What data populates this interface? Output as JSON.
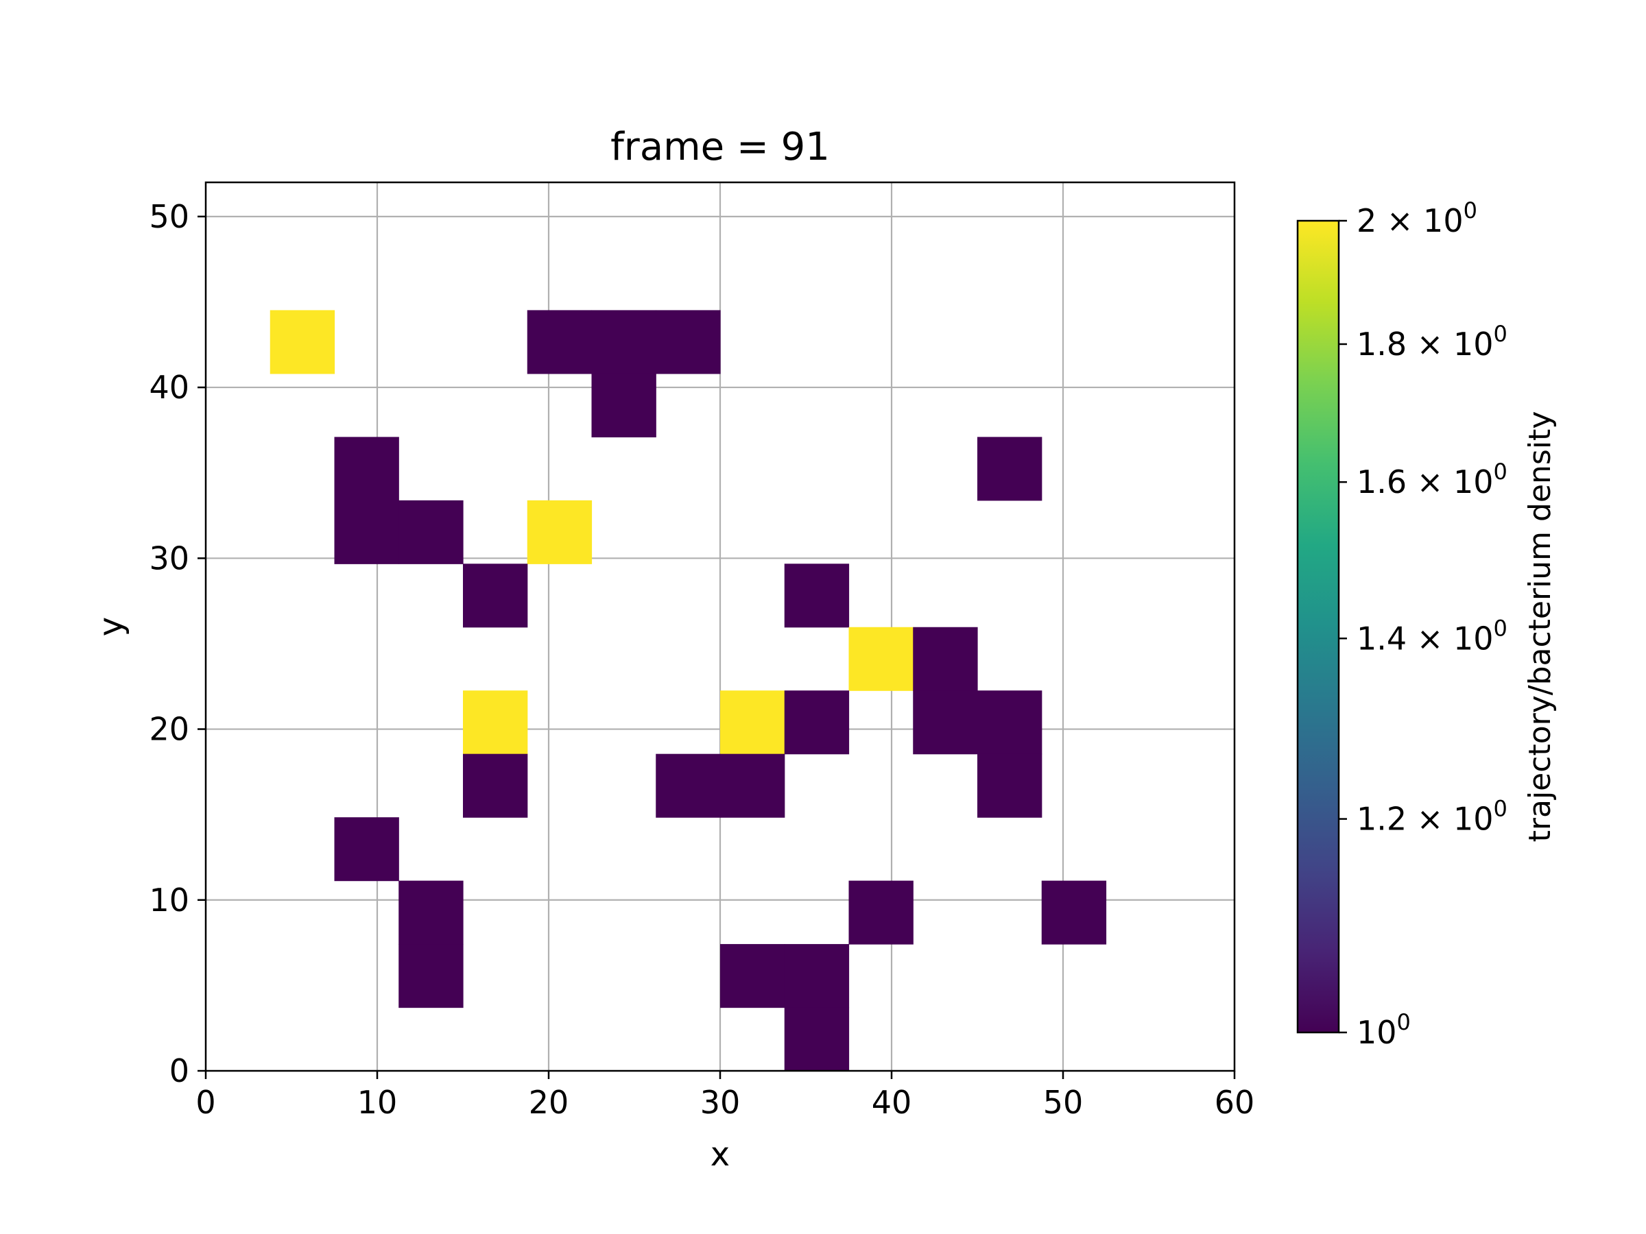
{
  "chart_data": {
    "type": "heatmap",
    "title": "frame = 91",
    "xlabel": "x",
    "ylabel": "y",
    "xlim": [
      0,
      60
    ],
    "ylim": [
      0,
      52
    ],
    "grid": true,
    "bin_width": 3.75,
    "bin_height": 3.71,
    "x_ticks": [
      "0",
      "10",
      "20",
      "30",
      "40",
      "50",
      "60"
    ],
    "y_ticks": [
      "0",
      "10",
      "20",
      "30",
      "40",
      "50"
    ],
    "colorbar": {
      "label": "trajectory/bacterium density",
      "scale": "log",
      "colormap": "viridis",
      "min": 1,
      "max": 2,
      "ticks": [
        {
          "value": 2.0,
          "mantissa": "2",
          "base": "10",
          "exp": "0"
        },
        {
          "value": 1.8,
          "mantissa": "1.8",
          "base": "10",
          "exp": "0"
        },
        {
          "value": 1.6,
          "mantissa": "1.6",
          "base": "10",
          "exp": "0"
        },
        {
          "value": 1.4,
          "mantissa": "1.4",
          "base": "10",
          "exp": "0"
        },
        {
          "value": 1.2,
          "mantissa": "1.2",
          "base": "10",
          "exp": "0"
        },
        {
          "value": 1.0,
          "mantissa": "",
          "base": "10",
          "exp": "0"
        }
      ]
    },
    "cells": [
      {
        "x": 3.75,
        "y": 40.81,
        "value": 2
      },
      {
        "x": 18.75,
        "y": 40.81,
        "value": 1
      },
      {
        "x": 22.5,
        "y": 40.81,
        "value": 1
      },
      {
        "x": 26.25,
        "y": 40.81,
        "value": 1
      },
      {
        "x": 22.5,
        "y": 37.1,
        "value": 1
      },
      {
        "x": 7.5,
        "y": 33.39,
        "value": 1
      },
      {
        "x": 45.0,
        "y": 33.39,
        "value": 1
      },
      {
        "x": 7.5,
        "y": 29.68,
        "value": 1
      },
      {
        "x": 11.25,
        "y": 29.68,
        "value": 1
      },
      {
        "x": 18.75,
        "y": 29.68,
        "value": 2
      },
      {
        "x": 15.0,
        "y": 25.97,
        "value": 1
      },
      {
        "x": 33.75,
        "y": 25.97,
        "value": 1
      },
      {
        "x": 37.5,
        "y": 22.26,
        "value": 2
      },
      {
        "x": 41.25,
        "y": 22.26,
        "value": 1
      },
      {
        "x": 15.0,
        "y": 18.55,
        "value": 2
      },
      {
        "x": 30.0,
        "y": 18.55,
        "value": 2
      },
      {
        "x": 33.75,
        "y": 18.55,
        "value": 1
      },
      {
        "x": 41.25,
        "y": 18.55,
        "value": 1
      },
      {
        "x": 45.0,
        "y": 18.55,
        "value": 1
      },
      {
        "x": 15.0,
        "y": 14.84,
        "value": 1
      },
      {
        "x": 26.25,
        "y": 14.84,
        "value": 1
      },
      {
        "x": 30.0,
        "y": 14.84,
        "value": 1
      },
      {
        "x": 45.0,
        "y": 14.84,
        "value": 1
      },
      {
        "x": 7.5,
        "y": 11.13,
        "value": 1
      },
      {
        "x": 11.25,
        "y": 7.42,
        "value": 1
      },
      {
        "x": 37.5,
        "y": 7.42,
        "value": 1
      },
      {
        "x": 48.75,
        "y": 7.42,
        "value": 1
      },
      {
        "x": 11.25,
        "y": 3.71,
        "value": 1
      },
      {
        "x": 30.0,
        "y": 3.71,
        "value": 1
      },
      {
        "x": 33.75,
        "y": 3.71,
        "value": 1
      },
      {
        "x": 33.75,
        "y": 0.0,
        "value": 1
      }
    ]
  },
  "colors": {
    "low": "#440154",
    "high": "#fde725",
    "grid": "#b0b0b0",
    "axis": "#000000"
  }
}
